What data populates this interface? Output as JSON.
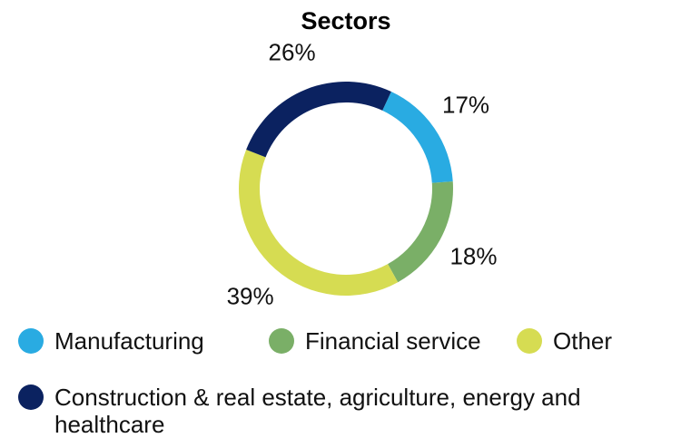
{
  "chart_data": {
    "type": "donut",
    "title": "Sectors",
    "categories": [
      "Manufacturing",
      "Financial service",
      "Other",
      "Construction & real estate, agriculture, energy and healthcare"
    ],
    "values": [
      17,
      18,
      39,
      26
    ],
    "value_labels": [
      "17%",
      "18%",
      "39%",
      "26%"
    ],
    "colors": [
      "#29abe2",
      "#7aaf67",
      "#d6dc52",
      "#0b2260"
    ]
  }
}
